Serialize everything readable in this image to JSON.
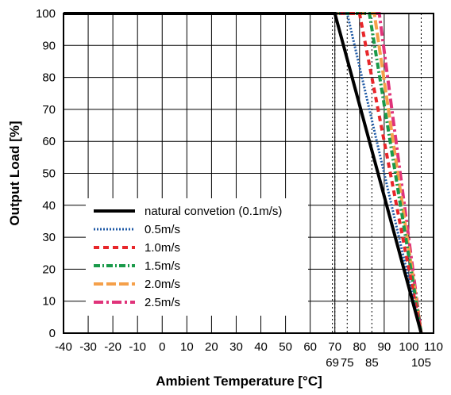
{
  "chart_data": {
    "type": "line",
    "xlabel": "Ambient Temperature [°C]",
    "ylabel": "Output Load [%]",
    "xlim": [
      -40,
      110
    ],
    "ylim": [
      0,
      100
    ],
    "x_ticks": [
      -40,
      -30,
      -20,
      -10,
      0,
      10,
      20,
      30,
      40,
      50,
      60,
      70,
      80,
      90,
      100,
      110
    ],
    "y_ticks": [
      0,
      10,
      20,
      30,
      40,
      50,
      60,
      70,
      80,
      90,
      100
    ],
    "x_tick_labels": [
      "-40",
      "-30",
      "-20",
      "-10",
      "0",
      "10",
      "20",
      "30",
      "40",
      "50",
      "60",
      "70",
      "80",
      "90",
      "100",
      "110"
    ],
    "y_tick_labels": [
      "0",
      "10",
      "20",
      "30",
      "40",
      "50",
      "60",
      "70",
      "80",
      "90",
      "100"
    ],
    "extra_x_labels": [
      "69",
      "75",
      "85",
      "105"
    ],
    "extra_x_values": [
      69,
      75,
      85,
      105
    ],
    "reference_lines_x": [
      69,
      70,
      75,
      85,
      105
    ],
    "grid": true,
    "legend_position": "lower-left",
    "series": [
      {
        "name": "natural convetion (0.1m/s)",
        "x": [
          -40,
          70,
          105
        ],
        "y": [
          100,
          100,
          0
        ],
        "color": "#000000",
        "style": "solid"
      },
      {
        "name": "0.5m/s",
        "x": [
          -40,
          75,
          105
        ],
        "y": [
          100,
          100,
          0
        ],
        "color": "#1f5aa6",
        "style": "dotted"
      },
      {
        "name": "1.0m/s",
        "x": [
          -40,
          80,
          105
        ],
        "y": [
          100,
          100,
          0
        ],
        "color": "#e8262a",
        "style": "dashed"
      },
      {
        "name": "1.5m/s",
        "x": [
          -40,
          84,
          105
        ],
        "y": [
          100,
          100,
          0
        ],
        "color": "#1a9a4a",
        "style": "dashdot"
      },
      {
        "name": "2.0m/s",
        "x": [
          -40,
          86,
          105
        ],
        "y": [
          100,
          100,
          0
        ],
        "color": "#f5a04a",
        "style": "longdash"
      },
      {
        "name": "2.5m/s",
        "x": [
          -40,
          88,
          105
        ],
        "y": [
          100,
          100,
          0
        ],
        "color": "#e0337a",
        "style": "dashdot-long"
      }
    ]
  }
}
